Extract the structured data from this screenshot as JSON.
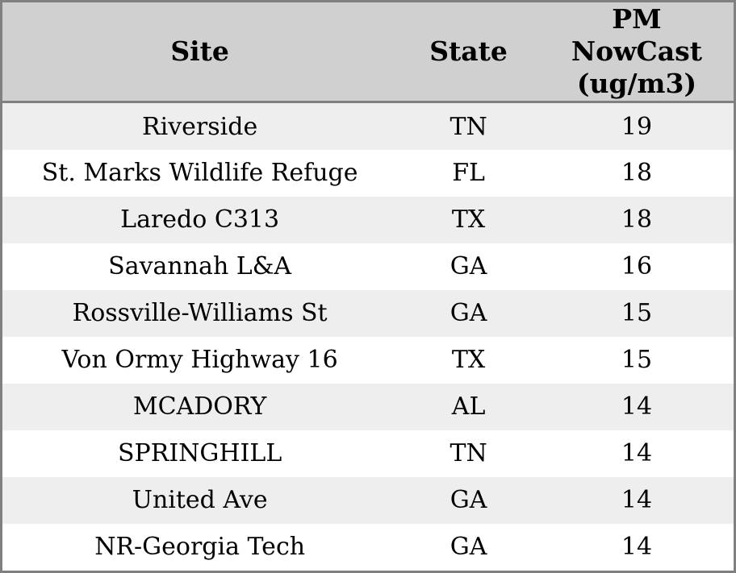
{
  "table": {
    "columns": [
      {
        "label": "Site"
      },
      {
        "label": "State"
      },
      {
        "label": "PM\nNowCast\n(ug/m3)"
      }
    ],
    "rows": [
      {
        "site": "Riverside",
        "state": "TN",
        "pm_nowcast": "19"
      },
      {
        "site": "St. Marks Wildlife Refuge",
        "state": "FL",
        "pm_nowcast": "18"
      },
      {
        "site": "Laredo C313",
        "state": "TX",
        "pm_nowcast": "18"
      },
      {
        "site": "Savannah L&A",
        "state": "GA",
        "pm_nowcast": "16"
      },
      {
        "site": "Rossville-Williams St",
        "state": "GA",
        "pm_nowcast": "15"
      },
      {
        "site": "Von Ormy Highway 16",
        "state": "TX",
        "pm_nowcast": "15"
      },
      {
        "site": "MCADORY",
        "state": "AL",
        "pm_nowcast": "14"
      },
      {
        "site": "SPRINGHILL",
        "state": "TN",
        "pm_nowcast": "14"
      },
      {
        "site": "United Ave",
        "state": "GA",
        "pm_nowcast": "14"
      },
      {
        "site": "NR-Georgia Tech",
        "state": "GA",
        "pm_nowcast": "14"
      }
    ]
  },
  "chart_data": {
    "type": "table",
    "title": "",
    "columns": [
      "Site",
      "State",
      "PM NowCast (ug/m3)"
    ],
    "rows": [
      [
        "Riverside",
        "TN",
        19
      ],
      [
        "St. Marks Wildlife Refuge",
        "FL",
        18
      ],
      [
        "Laredo C313",
        "TX",
        18
      ],
      [
        "Savannah L&A",
        "GA",
        16
      ],
      [
        "Rossville-Williams St",
        "GA",
        15
      ],
      [
        "Von Ormy Highway 16",
        "TX",
        15
      ],
      [
        "MCADORY",
        "AL",
        14
      ],
      [
        "SPRINGHILL",
        "TN",
        14
      ],
      [
        "United Ave",
        "GA",
        14
      ],
      [
        "NR-Georgia Tech",
        "GA",
        14
      ]
    ],
    "layout": {
      "header_alignment": "center",
      "cell_alignment": "center",
      "zebra_striping": true
    }
  },
  "colors": {
    "header_bg": "#d0d0d0",
    "stripe_row_bg": "#eeeeee",
    "plain_row_bg": "#ffffff",
    "border": "#808080",
    "text": "#000000"
  }
}
